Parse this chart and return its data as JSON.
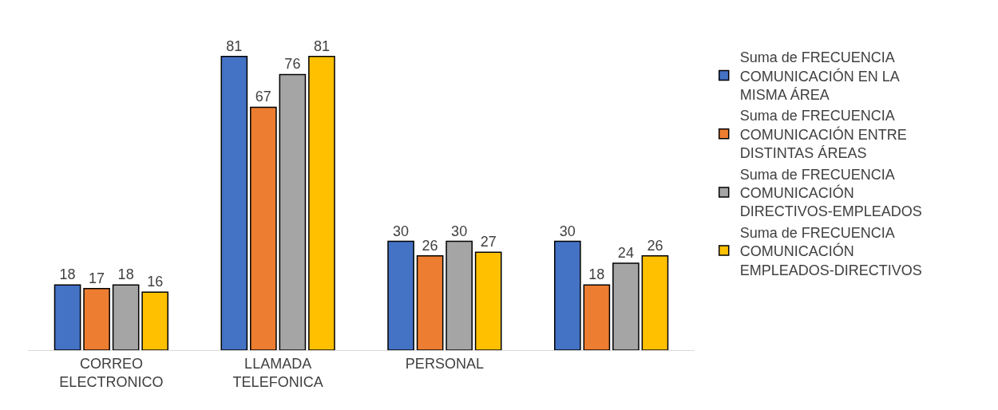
{
  "chart_data": {
    "type": "bar",
    "categories": [
      "CORREO ELECTRONICO",
      "LLAMADA TELEFONICA",
      "PERSONAL",
      null
    ],
    "series": [
      {
        "name": "Suma de FRECUENCIA COMUNICACIÓN EN LA MISMA ÁREA",
        "color": "#4472c4",
        "values": [
          18,
          81,
          30,
          30
        ]
      },
      {
        "name": "Suma de FRECUENCIA COMUNICACIÓN ENTRE DISTINTAS ÁREAS",
        "color": "#ed7d31",
        "values": [
          17,
          67,
          26,
          18
        ]
      },
      {
        "name": "Suma de FRECUENCIA COMUNICACIÓN DIRECTIVOS-EMPLEADOS",
        "color": "#a5a5a5",
        "values": [
          18,
          76,
          30,
          24
        ]
      },
      {
        "name": "Suma de FRECUENCIA COMUNICACIÓN EMPLEADOS-DIRECTIVOS",
        "color": "#ffc000",
        "values": [
          16,
          81,
          27,
          26
        ]
      }
    ],
    "data_labels": true,
    "legend": "right"
  }
}
